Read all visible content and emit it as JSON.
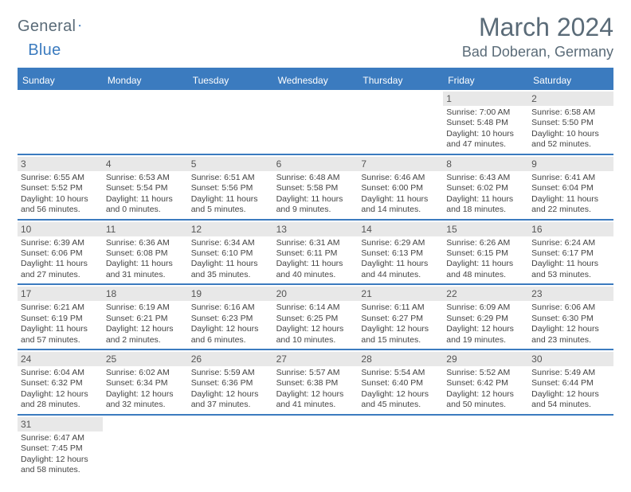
{
  "logo": {
    "general": "General",
    "blue": "Blue"
  },
  "title": "March 2024",
  "location": "Bad Doberan, Germany",
  "weekdays": [
    "Sunday",
    "Monday",
    "Tuesday",
    "Wednesday",
    "Thursday",
    "Friday",
    "Saturday"
  ],
  "colors": {
    "brand": "#3b7bbf",
    "text": "#5a6b78",
    "dayHeader": "#e8e8e8"
  },
  "weeks": [
    [
      null,
      null,
      null,
      null,
      null,
      {
        "n": "1",
        "l1": "Sunrise: 7:00 AM",
        "l2": "Sunset: 5:48 PM",
        "l3": "Daylight: 10 hours",
        "l4": "and 47 minutes."
      },
      {
        "n": "2",
        "l1": "Sunrise: 6:58 AM",
        "l2": "Sunset: 5:50 PM",
        "l3": "Daylight: 10 hours",
        "l4": "and 52 minutes."
      }
    ],
    [
      {
        "n": "3",
        "l1": "Sunrise: 6:55 AM",
        "l2": "Sunset: 5:52 PM",
        "l3": "Daylight: 10 hours",
        "l4": "and 56 minutes."
      },
      {
        "n": "4",
        "l1": "Sunrise: 6:53 AM",
        "l2": "Sunset: 5:54 PM",
        "l3": "Daylight: 11 hours",
        "l4": "and 0 minutes."
      },
      {
        "n": "5",
        "l1": "Sunrise: 6:51 AM",
        "l2": "Sunset: 5:56 PM",
        "l3": "Daylight: 11 hours",
        "l4": "and 5 minutes."
      },
      {
        "n": "6",
        "l1": "Sunrise: 6:48 AM",
        "l2": "Sunset: 5:58 PM",
        "l3": "Daylight: 11 hours",
        "l4": "and 9 minutes."
      },
      {
        "n": "7",
        "l1": "Sunrise: 6:46 AM",
        "l2": "Sunset: 6:00 PM",
        "l3": "Daylight: 11 hours",
        "l4": "and 14 minutes."
      },
      {
        "n": "8",
        "l1": "Sunrise: 6:43 AM",
        "l2": "Sunset: 6:02 PM",
        "l3": "Daylight: 11 hours",
        "l4": "and 18 minutes."
      },
      {
        "n": "9",
        "l1": "Sunrise: 6:41 AM",
        "l2": "Sunset: 6:04 PM",
        "l3": "Daylight: 11 hours",
        "l4": "and 22 minutes."
      }
    ],
    [
      {
        "n": "10",
        "l1": "Sunrise: 6:39 AM",
        "l2": "Sunset: 6:06 PM",
        "l3": "Daylight: 11 hours",
        "l4": "and 27 minutes."
      },
      {
        "n": "11",
        "l1": "Sunrise: 6:36 AM",
        "l2": "Sunset: 6:08 PM",
        "l3": "Daylight: 11 hours",
        "l4": "and 31 minutes."
      },
      {
        "n": "12",
        "l1": "Sunrise: 6:34 AM",
        "l2": "Sunset: 6:10 PM",
        "l3": "Daylight: 11 hours",
        "l4": "and 35 minutes."
      },
      {
        "n": "13",
        "l1": "Sunrise: 6:31 AM",
        "l2": "Sunset: 6:11 PM",
        "l3": "Daylight: 11 hours",
        "l4": "and 40 minutes."
      },
      {
        "n": "14",
        "l1": "Sunrise: 6:29 AM",
        "l2": "Sunset: 6:13 PM",
        "l3": "Daylight: 11 hours",
        "l4": "and 44 minutes."
      },
      {
        "n": "15",
        "l1": "Sunrise: 6:26 AM",
        "l2": "Sunset: 6:15 PM",
        "l3": "Daylight: 11 hours",
        "l4": "and 48 minutes."
      },
      {
        "n": "16",
        "l1": "Sunrise: 6:24 AM",
        "l2": "Sunset: 6:17 PM",
        "l3": "Daylight: 11 hours",
        "l4": "and 53 minutes."
      }
    ],
    [
      {
        "n": "17",
        "l1": "Sunrise: 6:21 AM",
        "l2": "Sunset: 6:19 PM",
        "l3": "Daylight: 11 hours",
        "l4": "and 57 minutes."
      },
      {
        "n": "18",
        "l1": "Sunrise: 6:19 AM",
        "l2": "Sunset: 6:21 PM",
        "l3": "Daylight: 12 hours",
        "l4": "and 2 minutes."
      },
      {
        "n": "19",
        "l1": "Sunrise: 6:16 AM",
        "l2": "Sunset: 6:23 PM",
        "l3": "Daylight: 12 hours",
        "l4": "and 6 minutes."
      },
      {
        "n": "20",
        "l1": "Sunrise: 6:14 AM",
        "l2": "Sunset: 6:25 PM",
        "l3": "Daylight: 12 hours",
        "l4": "and 10 minutes."
      },
      {
        "n": "21",
        "l1": "Sunrise: 6:11 AM",
        "l2": "Sunset: 6:27 PM",
        "l3": "Daylight: 12 hours",
        "l4": "and 15 minutes."
      },
      {
        "n": "22",
        "l1": "Sunrise: 6:09 AM",
        "l2": "Sunset: 6:29 PM",
        "l3": "Daylight: 12 hours",
        "l4": "and 19 minutes."
      },
      {
        "n": "23",
        "l1": "Sunrise: 6:06 AM",
        "l2": "Sunset: 6:30 PM",
        "l3": "Daylight: 12 hours",
        "l4": "and 23 minutes."
      }
    ],
    [
      {
        "n": "24",
        "l1": "Sunrise: 6:04 AM",
        "l2": "Sunset: 6:32 PM",
        "l3": "Daylight: 12 hours",
        "l4": "and 28 minutes."
      },
      {
        "n": "25",
        "l1": "Sunrise: 6:02 AM",
        "l2": "Sunset: 6:34 PM",
        "l3": "Daylight: 12 hours",
        "l4": "and 32 minutes."
      },
      {
        "n": "26",
        "l1": "Sunrise: 5:59 AM",
        "l2": "Sunset: 6:36 PM",
        "l3": "Daylight: 12 hours",
        "l4": "and 37 minutes."
      },
      {
        "n": "27",
        "l1": "Sunrise: 5:57 AM",
        "l2": "Sunset: 6:38 PM",
        "l3": "Daylight: 12 hours",
        "l4": "and 41 minutes."
      },
      {
        "n": "28",
        "l1": "Sunrise: 5:54 AM",
        "l2": "Sunset: 6:40 PM",
        "l3": "Daylight: 12 hours",
        "l4": "and 45 minutes."
      },
      {
        "n": "29",
        "l1": "Sunrise: 5:52 AM",
        "l2": "Sunset: 6:42 PM",
        "l3": "Daylight: 12 hours",
        "l4": "and 50 minutes."
      },
      {
        "n": "30",
        "l1": "Sunrise: 5:49 AM",
        "l2": "Sunset: 6:44 PM",
        "l3": "Daylight: 12 hours",
        "l4": "and 54 minutes."
      }
    ],
    [
      {
        "n": "31",
        "l1": "Sunrise: 6:47 AM",
        "l2": "Sunset: 7:45 PM",
        "l3": "Daylight: 12 hours",
        "l4": "and 58 minutes."
      },
      null,
      null,
      null,
      null,
      null,
      null
    ]
  ]
}
